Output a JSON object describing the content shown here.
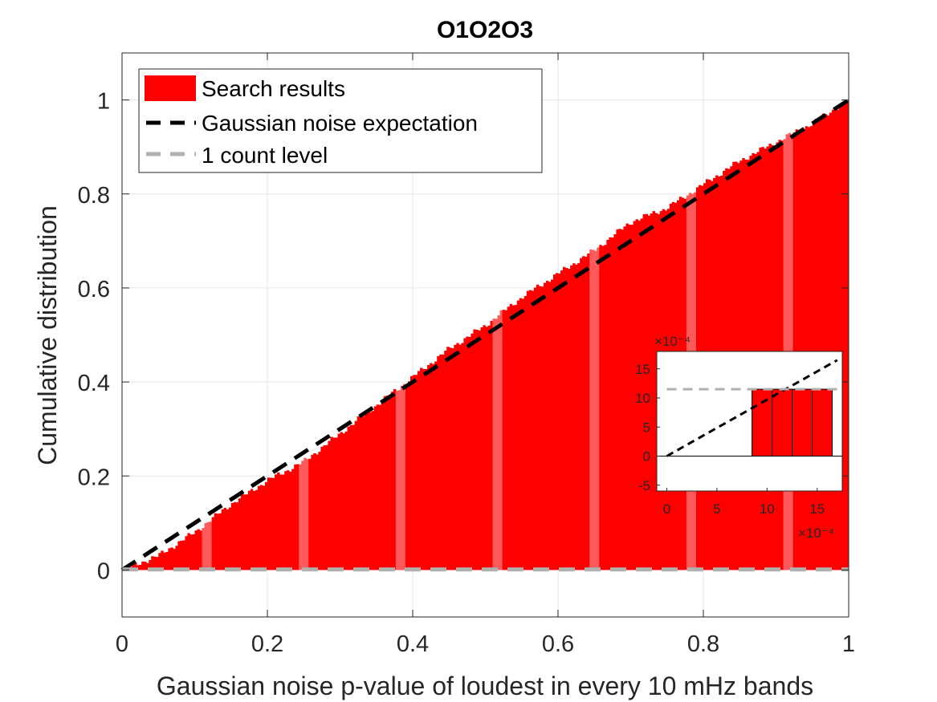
{
  "chart_data": [
    {
      "type": "bar",
      "title": "O1O2O3",
      "xlabel": "Gaussian noise p-value of loudest in every 10 mHz bands",
      "ylabel": "Cumulative distribution",
      "xlim": [
        0,
        1
      ],
      "ylim": [
        -0.1,
        1.1
      ],
      "xticks": [
        "0",
        "0.2",
        "0.4",
        "0.6",
        "0.8",
        "1"
      ],
      "yticks": [
        "0",
        "0.2",
        "0.4",
        "0.6",
        "0.8",
        "1"
      ],
      "grid": true,
      "legend_position": "top-left",
      "legend": [
        "Search results",
        "Gaussian noise expectation",
        "1 count level"
      ],
      "series": [
        {
          "name": "Search results",
          "kind": "bar",
          "color": "#ff0000",
          "x": [
            0.0,
            0.05,
            0.1,
            0.15,
            0.2,
            0.25,
            0.3,
            0.35,
            0.4,
            0.45,
            0.5,
            0.55,
            0.6,
            0.65,
            0.7,
            0.75,
            0.8,
            0.85,
            0.9,
            0.95,
            1.0
          ],
          "y": [
            0.0,
            0.03,
            0.08,
            0.14,
            0.19,
            0.23,
            0.29,
            0.35,
            0.41,
            0.47,
            0.52,
            0.58,
            0.63,
            0.68,
            0.74,
            0.77,
            0.82,
            0.87,
            0.91,
            0.95,
            1.0
          ]
        },
        {
          "name": "Gaussian noise expectation",
          "kind": "line",
          "style": "dashed",
          "color": "#000000",
          "x": [
            0,
            1
          ],
          "y": [
            0,
            1
          ]
        },
        {
          "name": "1 count level",
          "kind": "line",
          "style": "dashed",
          "color": "#b0b0b0",
          "x": [
            0,
            1
          ],
          "y": [
            0.0011,
            0.0011
          ]
        }
      ]
    },
    {
      "type": "bar",
      "inset": true,
      "x_multiplier": "×10⁻⁴",
      "y_multiplier": "×10⁻⁴",
      "xlim": [
        -1,
        17.5
      ],
      "ylim": [
        -6,
        18
      ],
      "xticks": [
        "0",
        "5",
        "10",
        "15"
      ],
      "yticks": [
        "-5",
        "0",
        "5",
        "10",
        "15"
      ],
      "series": [
        {
          "name": "Search results",
          "kind": "bar",
          "color": "#ff0000",
          "x": [
            9.5,
            11.5,
            13.5,
            15.5
          ],
          "y": [
            11.5,
            11.5,
            11.5,
            11.5
          ]
        },
        {
          "name": "Gaussian noise expectation",
          "kind": "line",
          "style": "dashed",
          "color": "#000000",
          "x": [
            0,
            17
          ],
          "y": [
            0,
            16.5
          ]
        },
        {
          "name": "1 count level",
          "kind": "line",
          "style": "dashed",
          "color": "#b0b0b0",
          "x": [
            -1,
            17.5
          ],
          "y": [
            11.5,
            11.5
          ]
        }
      ]
    }
  ]
}
